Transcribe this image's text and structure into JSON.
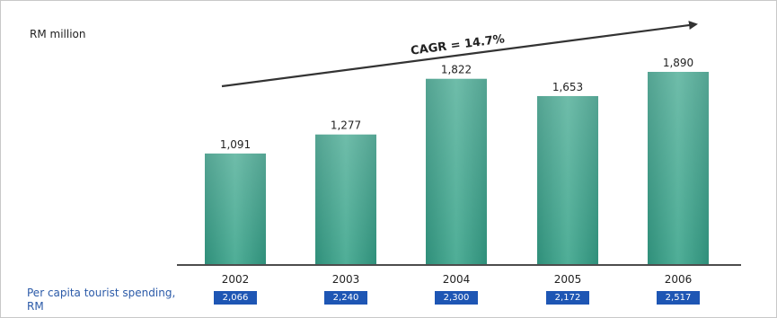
{
  "header": {
    "unit_label": "RM million"
  },
  "trend": {
    "label": "CAGR = 14.7%"
  },
  "chart_data": {
    "type": "bar",
    "title": "",
    "ylabel": "RM million",
    "xlabel": "",
    "categories": [
      "2002",
      "2003",
      "2004",
      "2005",
      "2006"
    ],
    "values": [
      1091,
      1277,
      1822,
      1653,
      1890
    ],
    "value_labels": [
      "1,091",
      "1,277",
      "1,822",
      "1,653",
      "1,890"
    ],
    "ylim": [
      0,
      2050
    ],
    "grid": false,
    "annotation": "CAGR = 14.7%",
    "bar_color": "#3a9e88"
  },
  "spending": {
    "label": "Per capita tourist spending, RM",
    "values": [
      "2,066",
      "2,240",
      "2,300",
      "2,172",
      "2,517"
    ],
    "box_color": "#1e56b4"
  }
}
